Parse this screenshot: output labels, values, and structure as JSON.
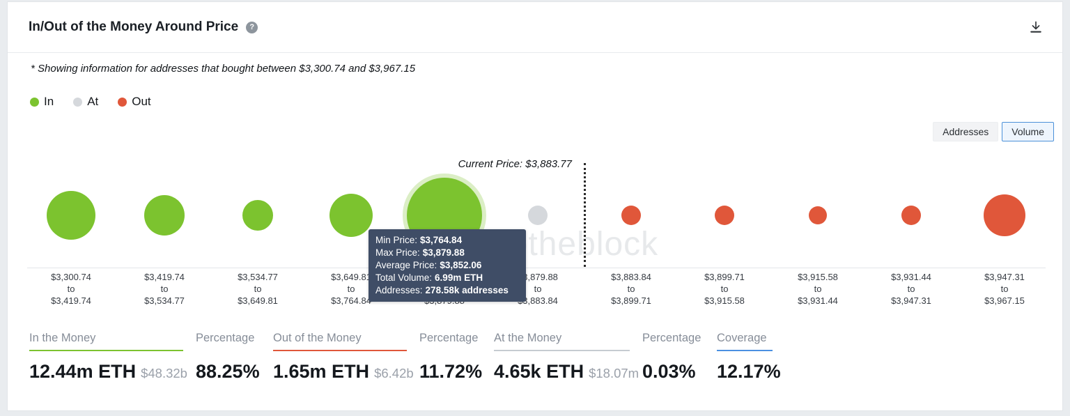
{
  "header": {
    "title": "In/Out of the Money Around Price",
    "help_icon": "?"
  },
  "note": "* Showing information for addresses that bought between $3,300.74 and $3,967.15",
  "legend": {
    "items": [
      {
        "label": "In",
        "color": "#7cc32f"
      },
      {
        "label": "At",
        "color": "#d5d8dc"
      },
      {
        "label": "Out",
        "color": "#e0573a"
      }
    ]
  },
  "view_toggle": {
    "options": [
      {
        "label": "Addresses",
        "selected": false
      },
      {
        "label": "Volume",
        "selected": true
      }
    ]
  },
  "chart_data": {
    "type": "bubble",
    "title": "In/Out of the Money Around Price",
    "x_axis": "price ranges (USD)",
    "value_encoding": "bubble size = ETH volume bought in price range",
    "current_price": "$3,883.77",
    "current_price_label": "Current Price: $3,883.77",
    "watermark": "intotheblock",
    "axis_to_word": "to",
    "status_colors": {
      "in": "#7cc32f",
      "at": "#d5d8dc",
      "out": "#e0573a"
    },
    "buckets": [
      {
        "from": "$3,300.74",
        "to": "$3,419.74",
        "status": "in",
        "radius": 35
      },
      {
        "from": "$3,419.74",
        "to": "$3,534.77",
        "status": "in",
        "radius": 29
      },
      {
        "from": "$3,534.77",
        "to": "$3,649.81",
        "status": "in",
        "radius": 22
      },
      {
        "from": "$3,649.81",
        "to": "$3,764.84",
        "status": "in",
        "radius": 31
      },
      {
        "from": "$3,764.84",
        "to": "$3,879.88",
        "status": "in",
        "radius": 54,
        "highlighted": true
      },
      {
        "from": "$3,879.88",
        "to": "$3,883.84",
        "status": "at",
        "radius": 14
      },
      {
        "from": "$3,883.84",
        "to": "$3,899.71",
        "status": "out",
        "radius": 14
      },
      {
        "from": "$3,899.71",
        "to": "$3,915.58",
        "status": "out",
        "radius": 14
      },
      {
        "from": "$3,915.58",
        "to": "$3,931.44",
        "status": "out",
        "radius": 13
      },
      {
        "from": "$3,931.44",
        "to": "$3,947.31",
        "status": "out",
        "radius": 14
      },
      {
        "from": "$3,947.31",
        "to": "$3,967.15",
        "status": "out",
        "radius": 30
      }
    ],
    "tooltip": {
      "bucket_index": 4,
      "rows": [
        {
          "label": "Min Price:",
          "value": "$3,764.84"
        },
        {
          "label": "Max Price:",
          "value": "$3,879.88"
        },
        {
          "label": "Average Price:",
          "value": "$3,852.06"
        },
        {
          "label": "Total Volume:",
          "value": "6.99m ETH"
        },
        {
          "label": "Addresses:",
          "value": "278.58k addresses"
        }
      ]
    }
  },
  "stats": {
    "columns": [
      {
        "label": "In the Money",
        "value": "12.44m ETH",
        "sub": "$48.32b",
        "accent": "#7cc32f"
      },
      {
        "label": "Percentage",
        "value": "88.25%",
        "sub": "",
        "accent": ""
      },
      {
        "label": "Out of the Money",
        "value": "1.65m ETH",
        "sub": "$6.42b",
        "accent": "#e0573a"
      },
      {
        "label": "Percentage",
        "value": "11.72%",
        "sub": "",
        "accent": ""
      },
      {
        "label": "At the Money",
        "value": "4.65k ETH",
        "sub": "$18.07m",
        "accent": "#c6cbd1"
      },
      {
        "label": "Percentage",
        "value": "0.03%",
        "sub": "",
        "accent": ""
      },
      {
        "label": "Coverage",
        "value": "12.17%",
        "sub": "",
        "accent": "#4a90e2"
      }
    ]
  }
}
